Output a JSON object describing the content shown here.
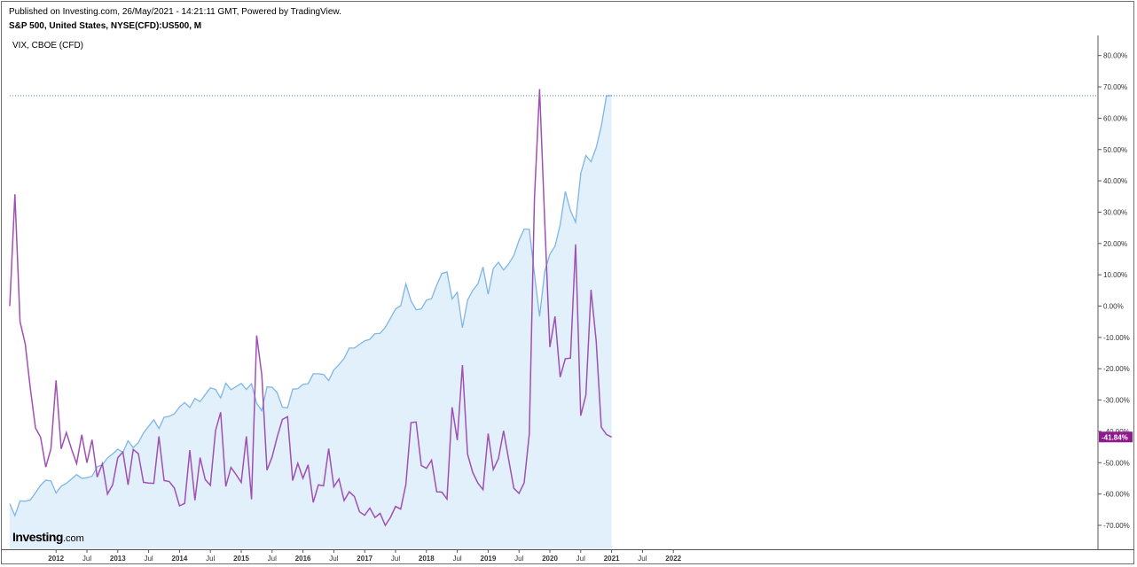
{
  "header": {
    "published": "Published on Investing.com, 26/May/2021 - 14:21:11 GMT, Powered by TradingView.",
    "symbol": "S&P 500, United States, NYSE(CFD):US500, M",
    "overlay": "VIX, CBOE (CFD)"
  },
  "logo": {
    "brand": "Investing",
    "suffix": ".com"
  },
  "colors": {
    "spx_line": "#7fb6e6",
    "spx_fill": "#e1f0fa",
    "vix_line": "#a050b4",
    "last_value_badge": "#8e1b8e",
    "price_line": "#4a78c8",
    "axis": "#555555"
  },
  "chart_data": {
    "type": "line",
    "x_start": "2011-04",
    "x_step": "1 month",
    "x_ticks": [
      "2012",
      "Jul",
      "2013",
      "Jul",
      "2014",
      "Jul",
      "2015",
      "Jul",
      "2016",
      "Jul",
      "2017",
      "Jul",
      "2018",
      "Jul",
      "2019",
      "Jul",
      "2020",
      "Jul",
      "2021",
      "Jul",
      "2022"
    ],
    "y_ticks": [
      "80.00%",
      "70.00%",
      "60.00%",
      "50.00%",
      "40.00%",
      "30.00%",
      "20.00%",
      "10.00%",
      "0.00%",
      "-10.00%",
      "-20.00%",
      "-30.00%",
      "-40.00%",
      "-50.00%",
      "-60.00%",
      "-70.00%"
    ],
    "ylim": [
      -75,
      86
    ],
    "y_unit": "%",
    "grid": false,
    "price_line": 67.2,
    "last_value_label": "-41.84%",
    "series": [
      {
        "style": "area",
        "values": [
          -63.1,
          -66.9,
          -62.2,
          -62.3,
          -61.9,
          -59.6,
          -57.2,
          -55.6,
          -55.8,
          -59.7,
          -57.5,
          -56.6,
          -55.2,
          -53.8,
          -55.0,
          -54.8,
          -54.3,
          -51.3,
          -50.7,
          -48.5,
          -47.2,
          -45.7,
          -46.7,
          -43.0,
          -45.2,
          -43.6,
          -40.5,
          -38.4,
          -36.3,
          -39.1,
          -35.5,
          -35.2,
          -34.4,
          -32.2,
          -30.8,
          -32.4,
          -29.5,
          -30.5,
          -28.3,
          -26.1,
          -26.6,
          -29.3,
          -24.6,
          -26.7,
          -25.7,
          -24.7,
          -26.6,
          -24.8,
          -31.0,
          -33.4,
          -25.8,
          -25.9,
          -27.7,
          -32.3,
          -32.5,
          -26.5,
          -26.4,
          -25.0,
          -24.8,
          -21.6,
          -21.6,
          -21.8,
          -23.8,
          -20.4,
          -18.7,
          -16.7,
          -13.4,
          -13.4,
          -12.2,
          -11.1,
          -10.6,
          -8.8,
          -8.7,
          -6.8,
          -3.9,
          -0.9,
          0.1,
          7.1,
          1.7,
          -1.2,
          -0.9,
          1.9,
          2.4,
          6.7,
          10.4,
          10.9,
          2.3,
          4.4,
          -6.9,
          1.9,
          5.0,
          7.1,
          12.5,
          3.8,
          12.0,
          14.0,
          11.5,
          13.5,
          16.2,
          21.0,
          24.6,
          24.5,
          10.3,
          -3.3,
          11.1,
          16.6,
          19.1,
          26.0,
          36.6,
          30.5,
          26.8,
          42.3,
          48.1,
          46.1,
          50.6,
          57.5,
          67.1,
          67.2
        ]
      },
      {
        "style": "line",
        "values": [
          0.0,
          35.7,
          -5.0,
          -12.0,
          -26.3,
          -38.9,
          -41.9,
          -51.4,
          -45.6,
          -23.7,
          -45.6,
          -40.4,
          -45.6,
          -50.3,
          -41.1,
          -50.0,
          -42.7,
          -54.6,
          -50.3,
          -60.0,
          -57.1,
          -48.4,
          -46.6,
          -57.1,
          -45.8,
          -47.1,
          -56.3,
          -56.5,
          -56.6,
          -41.6,
          -55.7,
          -56.0,
          -58.1,
          -63.8,
          -63.0,
          -46.0,
          -62.0,
          -48.4,
          -55.4,
          -57.2,
          -39.8,
          -33.9,
          -57.6,
          -51.5,
          -53.8,
          -56.3,
          -41.6,
          -61.7,
          -9.4,
          -22.0,
          -52.4,
          -48.2,
          -41.7,
          -36.2,
          -35.3,
          -55.7,
          -50.2,
          -55.0,
          -50.7,
          -62.7,
          -57.1,
          -57.4,
          -45.5,
          -57.7,
          -55.2,
          -62.1,
          -59.3,
          -60.8,
          -65.7,
          -66.8,
          -64.5,
          -67.5,
          -66.2,
          -70.0,
          -67.5,
          -64.0,
          -64.8,
          -57.0,
          -37.2,
          -37.0,
          -50.9,
          -51.8,
          -49.2,
          -59.3,
          -59.4,
          -61.6,
          -32.3,
          -42.8,
          -18.8,
          -47.3,
          -53.1,
          -56.5,
          -58.6,
          -40.7,
          -52.2,
          -48.7,
          -39.8,
          -49.1,
          -58.2,
          -59.8,
          -56.4,
          -40.8,
          34.3,
          69.3,
          27.0,
          -13.1,
          -3.3,
          -22.7,
          -16.8,
          -16.6,
          19.7,
          -35.0,
          -28.4,
          5.2,
          -11.1,
          -38.7,
          -41.0,
          -41.8
        ]
      }
    ]
  }
}
